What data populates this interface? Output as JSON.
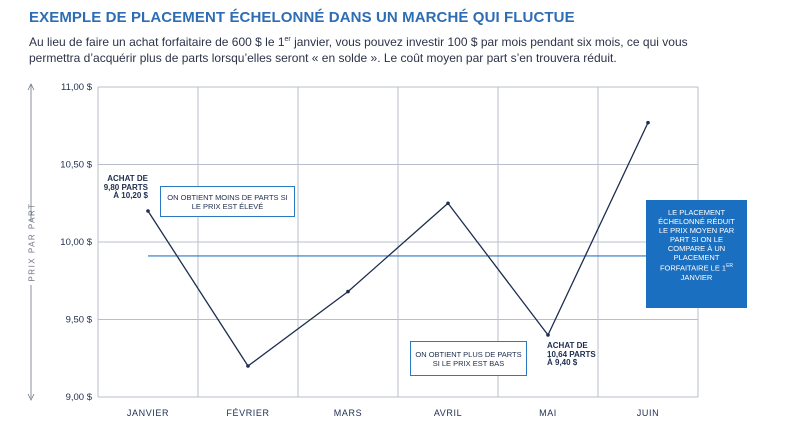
{
  "title": "EXEMPLE DE PLACEMENT ÉCHELONNÉ DANS UN MARCHÉ QUI FLUCTUE",
  "subtitle": {
    "part1": "Au lieu de faire un achat forfaitaire de 600 $ le 1",
    "sup": "er",
    "part2": " janvier, vous pouvez investir 100 $ par mois pendant six mois, ce qui vous permettra d’acquérir plus de parts lorsqu’elles seront « en solde ». Le coût moyen par part s’en trouvera réduit."
  },
  "chart_data": {
    "type": "line",
    "title": "",
    "xlabel": "",
    "ylabel": "PRIX PAR PART",
    "categories": [
      "JANVIER",
      "FÉVRIER",
      "MARS",
      "AVRIL",
      "MAI",
      "JUIN"
    ],
    "series": [
      {
        "values": [
          10.2,
          9.2,
          9.68,
          10.25,
          9.4,
          10.77
        ]
      }
    ],
    "average_line": 9.91,
    "yticks": [
      9.0,
      9.5,
      10.0,
      10.5,
      11.0
    ],
    "ytick_labels": [
      "9,00 $",
      "9,50 $",
      "10,00 $",
      "10,50 $",
      "11,00 $"
    ],
    "ylim": [
      9.0,
      11.0
    ],
    "grid": true,
    "colors": {
      "line": "#1d2d4f",
      "average": "#2b79c2",
      "grid": "#b9bfca"
    }
  },
  "annotations": {
    "buy_high": "ACHAT DE\n9,80 PARTS\nÀ 10,20 $",
    "buy_low": "ACHAT DE\n10,64 PARTS\nÀ 9,40 $",
    "box_high": "ON OBTIENT MOINS DE PARTS SI LE PRIX EST ÉLEVÉ",
    "box_low": "ON OBTIENT PLUS DE PARTS SI LE PRIX EST BAS",
    "callout_main": "LE PLACEMENT ÉCHELONNÉ RÉDUIT LE PRIX MOYEN PAR PART SI ON LE COMPARE À UN PLACEMENT FORFAITAIRE LE 1",
    "callout_sup": "ER",
    "callout_end": " JANVIER"
  }
}
